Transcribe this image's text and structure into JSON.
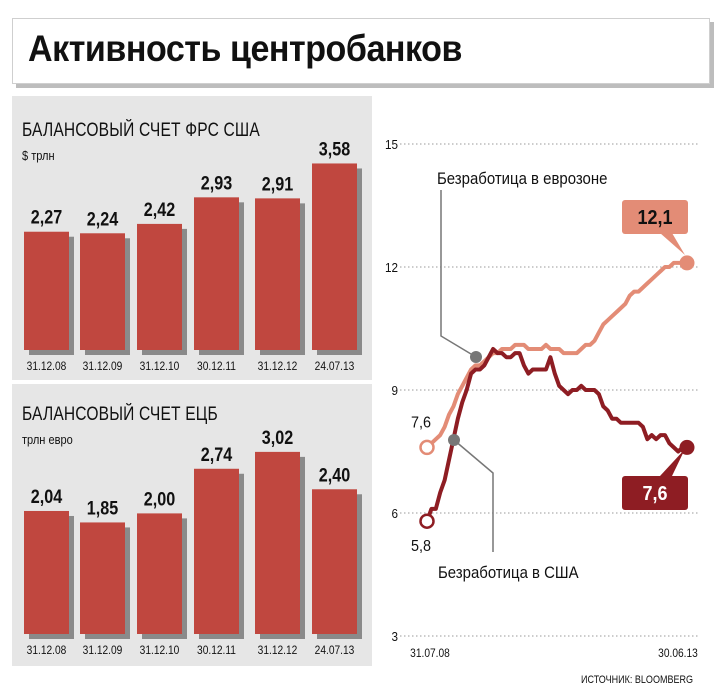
{
  "title": "Активность центробанков",
  "source": "ИСТОЧНИК: BLOOMBERG",
  "colors": {
    "bar": "#c0473f",
    "bar_shadow": "#8a8a8a",
    "panel_bg": "#e6e6e6",
    "us_line": "#8e1d23",
    "ez_line": "#e38c76"
  },
  "chart_data": [
    {
      "type": "bar",
      "title": "БАЛАНСОВЫЙ СЧЕТ ФРС США",
      "ylabel": "$ трлн",
      "categories": [
        "31.12.08",
        "31.12.09",
        "31.12.10",
        "30.12.11",
        "31.12.12",
        "24.07.13"
      ],
      "values": [
        2.27,
        2.24,
        2.42,
        2.93,
        2.91,
        3.58
      ],
      "value_labels": [
        "2,27",
        "2,24",
        "2,42",
        "2,93",
        "2,91",
        "3,58"
      ],
      "ylim": [
        0,
        3.8
      ]
    },
    {
      "type": "bar",
      "title": "БАЛАНСОВЫЙ СЧЕТ ЕЦБ",
      "ylabel": "трлн евро",
      "categories": [
        "31.12.08",
        "31.12.09",
        "31.12.10",
        "30.12.11",
        "31.12.12",
        "24.07.13"
      ],
      "values": [
        2.04,
        1.85,
        2.0,
        2.74,
        3.02,
        2.4
      ],
      "value_labels": [
        "2,04",
        "1,85",
        "2,00",
        "2,74",
        "3,02",
        "2,40"
      ],
      "ylim": [
        0,
        3.3
      ]
    },
    {
      "type": "line",
      "x_tick_labels": [
        "31.07.08",
        "30.06.13"
      ],
      "yticks": [
        3,
        6,
        9,
        12,
        15
      ],
      "ylim": [
        3,
        15
      ],
      "x_range": [
        "2008-07",
        "2013-06"
      ],
      "grid": true,
      "series": [
        {
          "name": "Безработица в США",
          "x": [
            "2008-07",
            "2008-08",
            "2008-09",
            "2008-10",
            "2008-11",
            "2008-12",
            "2009-01",
            "2009-02",
            "2009-03",
            "2009-04",
            "2009-05",
            "2009-06",
            "2009-07",
            "2009-08",
            "2009-09",
            "2009-10",
            "2009-11",
            "2009-12",
            "2010-01",
            "2010-02",
            "2010-03",
            "2010-04",
            "2010-05",
            "2010-06",
            "2010-07",
            "2010-08",
            "2010-09",
            "2010-10",
            "2010-11",
            "2010-12",
            "2011-01",
            "2011-02",
            "2011-03",
            "2011-04",
            "2011-05",
            "2011-06",
            "2011-07",
            "2011-08",
            "2011-09",
            "2011-10",
            "2011-11",
            "2011-12",
            "2012-01",
            "2012-02",
            "2012-03",
            "2012-04",
            "2012-05",
            "2012-06",
            "2012-07",
            "2012-08",
            "2012-09",
            "2012-10",
            "2012-11",
            "2012-12",
            "2013-01",
            "2013-02",
            "2013-03",
            "2013-04",
            "2013-05",
            "2013-06"
          ],
          "values": [
            5.8,
            6.1,
            6.1,
            6.5,
            6.8,
            7.3,
            7.8,
            8.3,
            8.7,
            9.0,
            9.4,
            9.5,
            9.5,
            9.6,
            9.8,
            10.0,
            9.9,
            9.9,
            9.8,
            9.8,
            9.9,
            9.9,
            9.6,
            9.4,
            9.5,
            9.5,
            9.5,
            9.5,
            9.8,
            9.4,
            9.1,
            9.0,
            8.9,
            9.0,
            9.0,
            9.1,
            9.0,
            9.0,
            9.0,
            8.9,
            8.6,
            8.5,
            8.3,
            8.3,
            8.2,
            8.2,
            8.2,
            8.2,
            8.2,
            8.1,
            7.8,
            7.9,
            7.8,
            7.9,
            7.9,
            7.7,
            7.6,
            7.5,
            7.6,
            7.6
          ],
          "start_label": "5,8",
          "end_label": "7,6"
        },
        {
          "name": "Безработица в еврозоне",
          "x": [
            "2008-07",
            "2008-08",
            "2008-09",
            "2008-10",
            "2008-11",
            "2008-12",
            "2009-01",
            "2009-02",
            "2009-03",
            "2009-04",
            "2009-05",
            "2009-06",
            "2009-07",
            "2009-08",
            "2009-09",
            "2009-10",
            "2009-11",
            "2009-12",
            "2010-01",
            "2010-02",
            "2010-03",
            "2010-04",
            "2010-05",
            "2010-06",
            "2010-07",
            "2010-08",
            "2010-09",
            "2010-10",
            "2010-11",
            "2010-12",
            "2011-01",
            "2011-02",
            "2011-03",
            "2011-04",
            "2011-05",
            "2011-06",
            "2011-07",
            "2011-08",
            "2011-09",
            "2011-10",
            "2011-11",
            "2011-12",
            "2012-01",
            "2012-02",
            "2012-03",
            "2012-04",
            "2012-05",
            "2012-06",
            "2012-07",
            "2012-08",
            "2012-09",
            "2012-10",
            "2012-11",
            "2012-12",
            "2013-01",
            "2013-02",
            "2013-03",
            "2013-04",
            "2013-05",
            "2013-06"
          ],
          "values": [
            7.6,
            7.7,
            7.8,
            7.9,
            8.1,
            8.4,
            8.6,
            8.9,
            9.1,
            9.3,
            9.5,
            9.6,
            9.6,
            9.7,
            9.8,
            9.9,
            9.9,
            10.0,
            10.0,
            10.0,
            10.1,
            10.1,
            10.1,
            10.0,
            10.0,
            10.0,
            10.0,
            10.1,
            10.0,
            10.0,
            10.0,
            9.9,
            9.9,
            9.9,
            9.9,
            10.0,
            10.1,
            10.1,
            10.2,
            10.4,
            10.6,
            10.7,
            10.8,
            10.9,
            11.0,
            11.1,
            11.3,
            11.4,
            11.4,
            11.5,
            11.6,
            11.7,
            11.8,
            11.9,
            12.0,
            12.0,
            12.1,
            12.1,
            12.1,
            12.1
          ],
          "start_label": "7,6",
          "end_label": "12,1"
        }
      ]
    }
  ]
}
